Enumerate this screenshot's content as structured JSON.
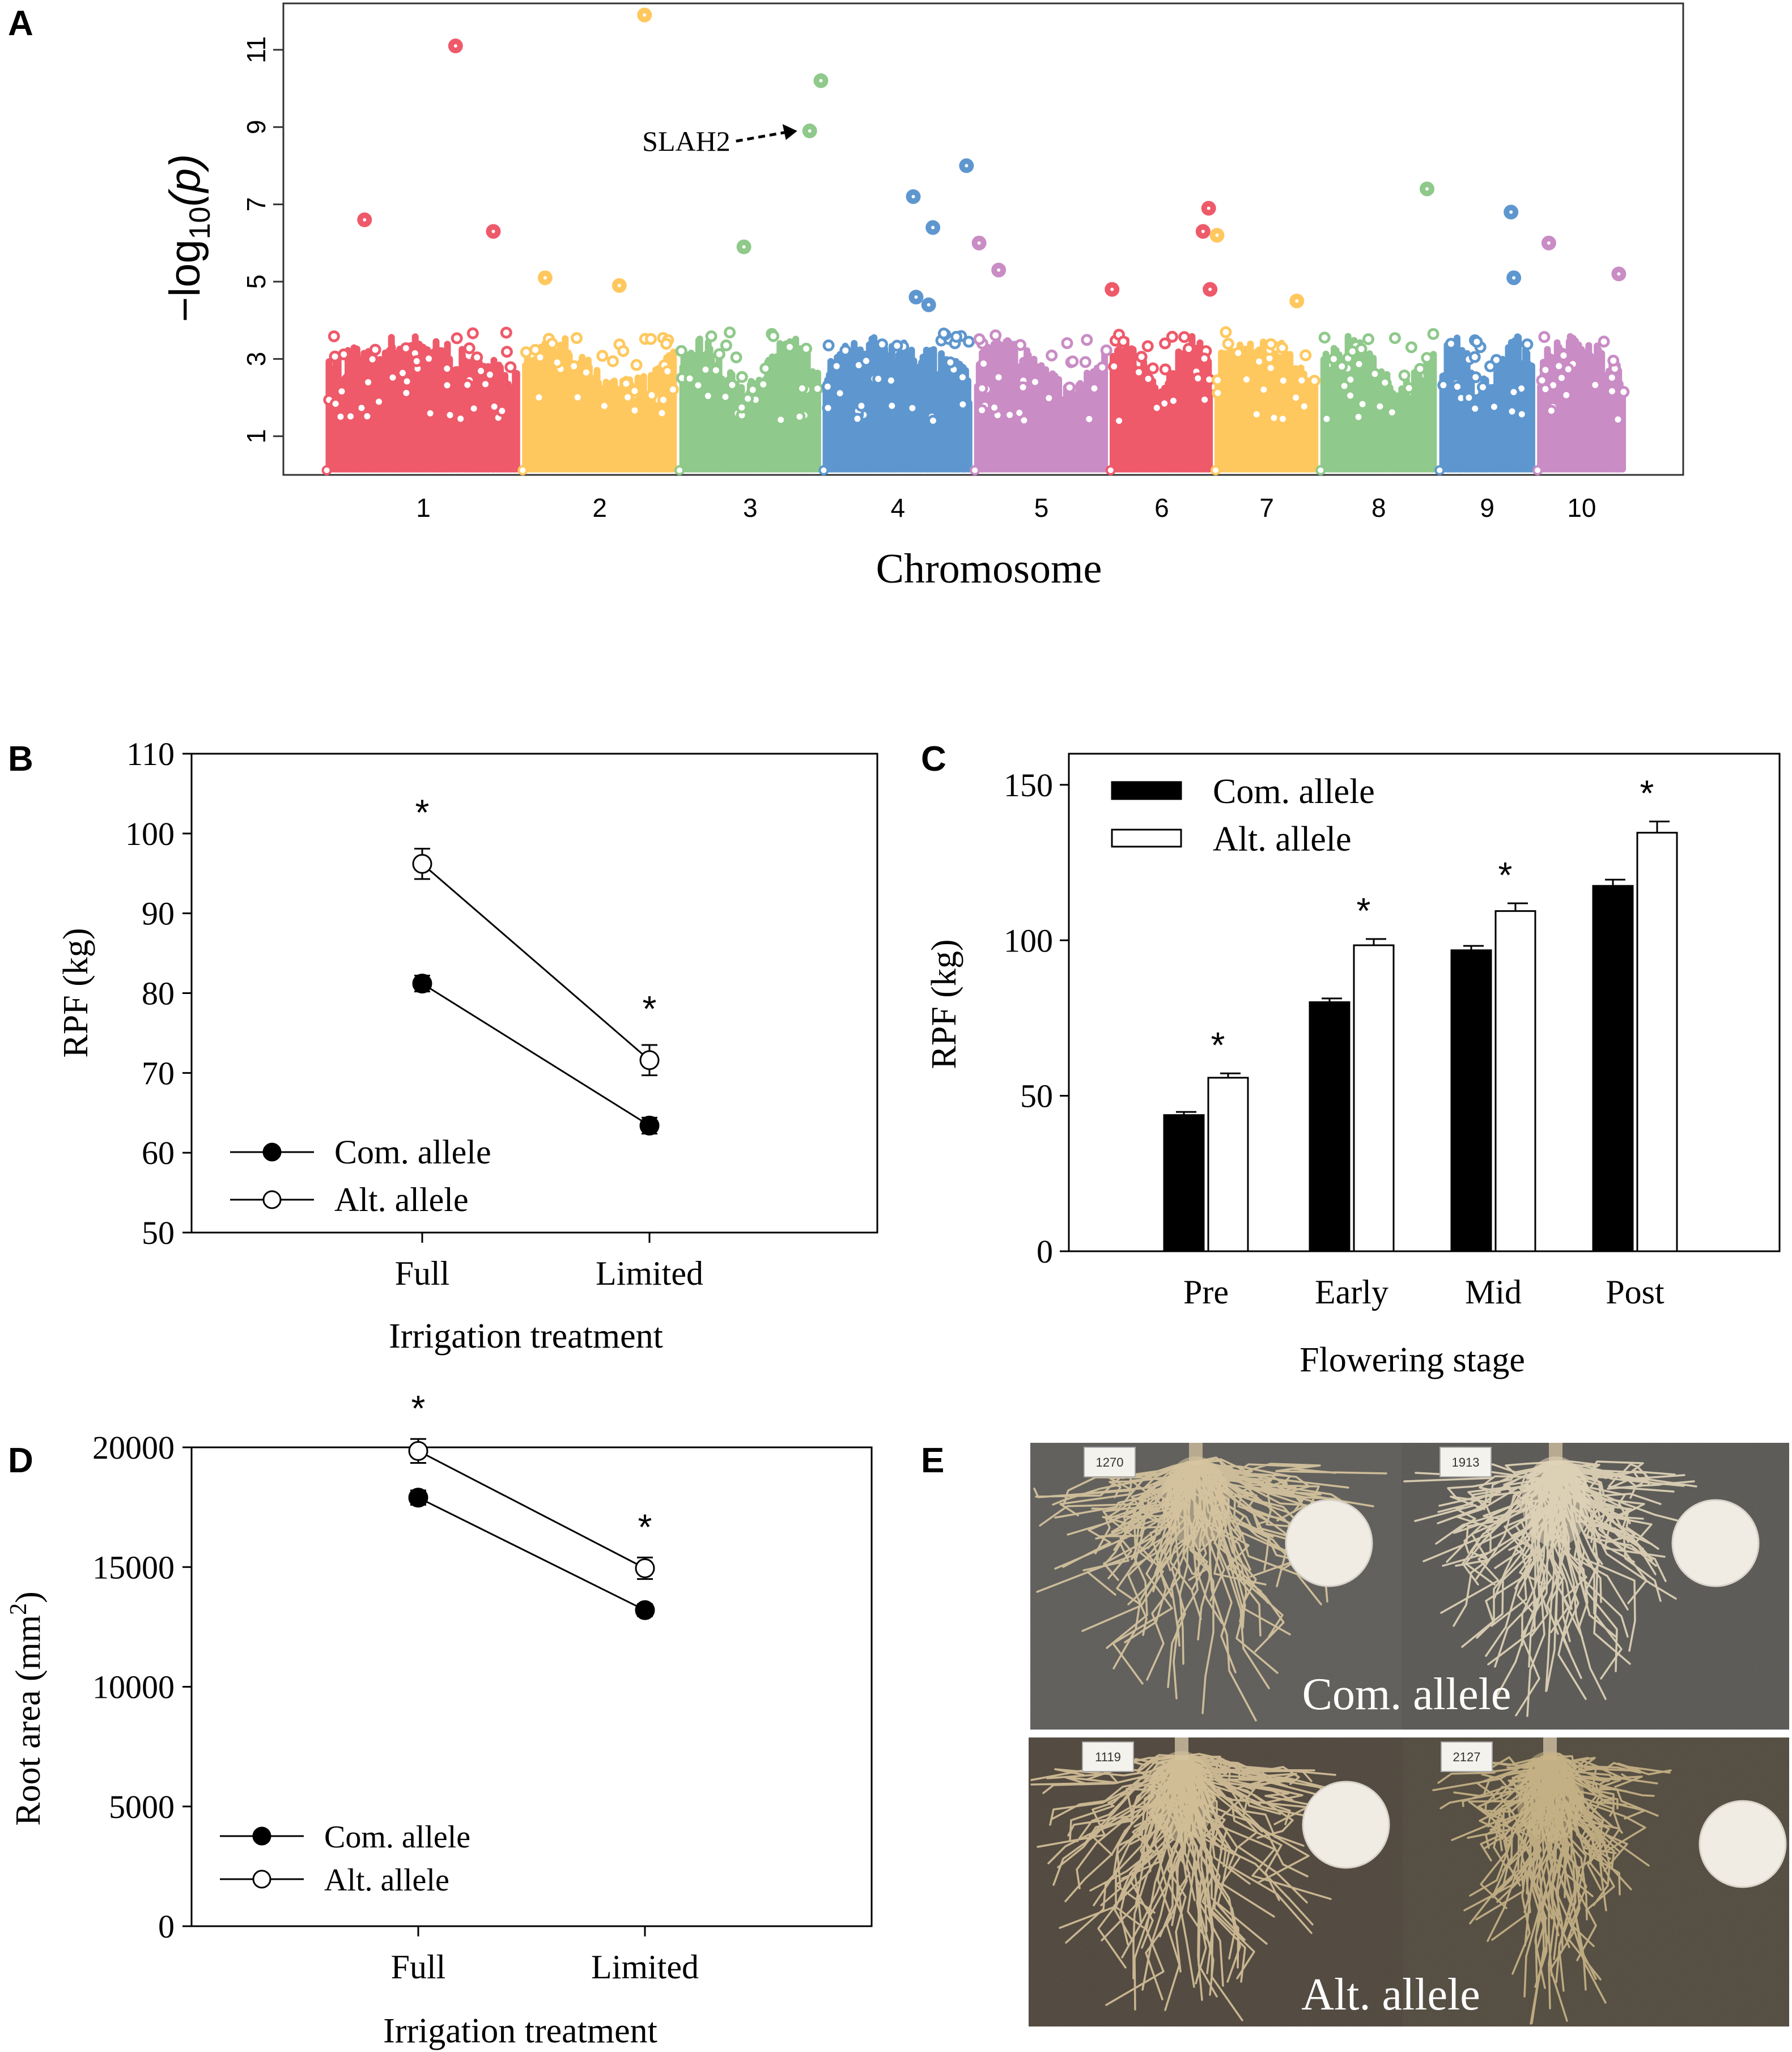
{
  "panel_labels": {
    "a": "A",
    "b": "B",
    "c": "C",
    "d": "D",
    "e": "E"
  },
  "chart_data": [
    {
      "panel": "A",
      "type": "scatter",
      "subtype": "manhattan",
      "xlabel": "Chromosome",
      "ylabel_prefix": "−log",
      "ylabel_sub": "10",
      "ylabel_suffix": "(p)",
      "ylim": [
        0,
        12.2
      ],
      "yticks": [
        1,
        3,
        5,
        7,
        9,
        11
      ],
      "chromosomes": [
        {
          "label": "1",
          "start": 0.0,
          "end": 14.0,
          "color": "#EE5A6A"
        },
        {
          "label": "2",
          "start": 14.0,
          "end": 25.2,
          "color": "#FFC85E"
        },
        {
          "label": "3",
          "start": 25.2,
          "end": 35.5,
          "color": "#8FC98B"
        },
        {
          "label": "4",
          "start": 35.5,
          "end": 46.3,
          "color": "#5E97CF"
        },
        {
          "label": "5",
          "start": 46.3,
          "end": 56.0,
          "color": "#C98CC5"
        },
        {
          "label": "6",
          "start": 56.0,
          "end": 63.5,
          "color": "#EE5A6A"
        },
        {
          "label": "7",
          "start": 63.5,
          "end": 71.0,
          "color": "#FFC85E"
        },
        {
          "label": "8",
          "start": 71.0,
          "end": 79.5,
          "color": "#8FC98B"
        },
        {
          "label": "9",
          "start": 79.5,
          "end": 86.5,
          "color": "#5E97CF"
        },
        {
          "label": "10",
          "start": 86.5,
          "end": 93.0,
          "color": "#C98CC5"
        }
      ],
      "x_range": [
        -3,
        97
      ],
      "peaks": [
        {
          "x": 2.8,
          "y": 6.6
        },
        {
          "x": 9.3,
          "y": 11.1
        },
        {
          "x": 12.0,
          "y": 6.3
        },
        {
          "x": 15.7,
          "y": 5.1
        },
        {
          "x": 21.0,
          "y": 4.9
        },
        {
          "x": 22.8,
          "y": 11.9
        },
        {
          "x": 29.9,
          "y": 5.9
        },
        {
          "x": 34.6,
          "y": 8.9
        },
        {
          "x": 35.4,
          "y": 10.2
        },
        {
          "x": 42.0,
          "y": 7.2
        },
        {
          "x": 43.4,
          "y": 6.4
        },
        {
          "x": 45.8,
          "y": 8.0
        },
        {
          "x": 42.2,
          "y": 4.6
        },
        {
          "x": 43.1,
          "y": 4.4
        },
        {
          "x": 46.7,
          "y": 6.0
        },
        {
          "x": 48.1,
          "y": 5.3
        },
        {
          "x": 56.2,
          "y": 4.8
        },
        {
          "x": 63.1,
          "y": 6.9
        },
        {
          "x": 62.7,
          "y": 6.3
        },
        {
          "x": 63.7,
          "y": 6.2
        },
        {
          "x": 63.2,
          "y": 4.8
        },
        {
          "x": 69.4,
          "y": 4.5
        },
        {
          "x": 78.7,
          "y": 7.4
        },
        {
          "x": 84.7,
          "y": 6.8
        },
        {
          "x": 84.9,
          "y": 5.1
        },
        {
          "x": 87.4,
          "y": 6.0
        },
        {
          "x": 92.4,
          "y": 5.2
        }
      ],
      "annotation": {
        "label": "SLAH2",
        "x": 34.6,
        "y": 8.9
      }
    },
    {
      "panel": "B",
      "type": "line",
      "xlabel": "Irrigation treatment",
      "ylabel": "RPF (kg)",
      "ylim": [
        50,
        110
      ],
      "yticks": [
        50,
        60,
        70,
        80,
        90,
        100,
        110
      ],
      "categories": [
        "Full",
        "Limited"
      ],
      "series": [
        {
          "name": "Com. allele",
          "filled": true,
          "values": [
            81.2,
            63.4
          ],
          "errors": [
            1.0,
            1.0
          ]
        },
        {
          "name": "Alt. allele",
          "filled": false,
          "values": [
            96.2,
            71.6
          ],
          "errors": [
            1.9,
            1.9
          ]
        }
      ],
      "significance": [
        "*",
        "*"
      ]
    },
    {
      "panel": "C",
      "type": "bar",
      "xlabel": "Flowering stage",
      "ylabel": "RPF (kg)",
      "ylim": [
        0,
        160
      ],
      "yticks": [
        0,
        50,
        100,
        150
      ],
      "categories": [
        "Pre",
        "Early",
        "Mid",
        "Post"
      ],
      "series": [
        {
          "name": "Com. allele",
          "fill": "#000000",
          "values": [
            43.8,
            80.1,
            96.8,
            117.5
          ],
          "errors": [
            1.0,
            1.2,
            1.4,
            2.0
          ]
        },
        {
          "name": "Alt. allele",
          "fill": "#ffffff",
          "values": [
            55.8,
            98.4,
            109.4,
            134.6
          ],
          "errors": [
            1.4,
            2.0,
            2.5,
            3.6
          ]
        }
      ],
      "significance": [
        "*",
        "*",
        "*",
        "*"
      ]
    },
    {
      "panel": "D",
      "type": "line",
      "xlabel": "Irrigation treatment",
      "ylabel": "Root area (mm",
      "ylabel_sup": "2",
      "ylabel_end": ")",
      "ylim": [
        0,
        20000
      ],
      "yticks": [
        0,
        5000,
        10000,
        15000,
        20000
      ],
      "categories": [
        "Full",
        "Limited"
      ],
      "series": [
        {
          "name": "Com. allele",
          "filled": true,
          "values": [
            17900,
            13200
          ],
          "errors": [
            300,
            250
          ]
        },
        {
          "name": "Alt. allele",
          "filled": false,
          "values": [
            19850,
            14950
          ],
          "errors": [
            500,
            450
          ]
        }
      ],
      "significance": [
        "*",
        "*"
      ]
    }
  ],
  "photos": {
    "top_caption": "Com. allele",
    "bottom_caption": "Alt. allele",
    "tags": [
      "1270",
      "1913",
      "1119",
      "2127"
    ]
  }
}
